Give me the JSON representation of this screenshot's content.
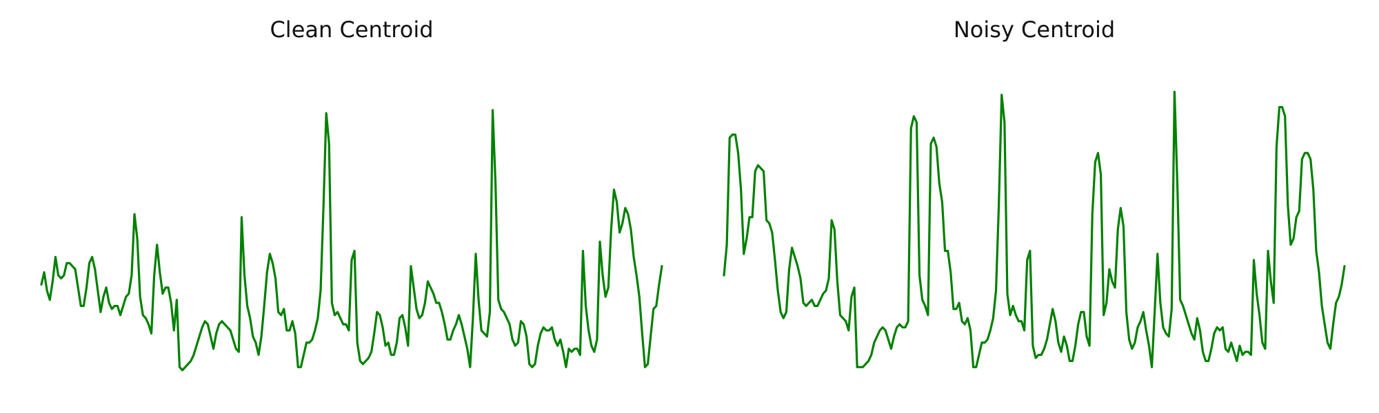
{
  "chart_data": [
    {
      "type": "line",
      "title": "Clean Centroid",
      "color": "#008000",
      "grid": false,
      "axes_visible": false,
      "ylim": [
        -0.06,
        1.02
      ],
      "values": [
        0.27,
        0.31,
        0.25,
        0.22,
        0.28,
        0.36,
        0.3,
        0.29,
        0.3,
        0.34,
        0.34,
        0.33,
        0.32,
        0.26,
        0.2,
        0.2,
        0.26,
        0.34,
        0.36,
        0.32,
        0.25,
        0.18,
        0.23,
        0.26,
        0.21,
        0.19,
        0.2,
        0.2,
        0.17,
        0.2,
        0.23,
        0.24,
        0.3,
        0.5,
        0.42,
        0.23,
        0.17,
        0.16,
        0.14,
        0.11,
        0.3,
        0.4,
        0.31,
        0.24,
        0.26,
        0.26,
        0.21,
        0.12,
        0.22,
        0.0,
        -0.01,
        0.0,
        0.01,
        0.02,
        0.04,
        0.07,
        0.1,
        0.13,
        0.15,
        0.14,
        0.1,
        0.06,
        0.11,
        0.14,
        0.15,
        0.14,
        0.13,
        0.12,
        0.09,
        0.06,
        0.05,
        0.49,
        0.3,
        0.2,
        0.16,
        0.1,
        0.08,
        0.04,
        0.1,
        0.2,
        0.31,
        0.37,
        0.34,
        0.29,
        0.18,
        0.17,
        0.19,
        0.12,
        0.12,
        0.15,
        0.11,
        0.0,
        0.0,
        0.04,
        0.08,
        0.08,
        0.09,
        0.12,
        0.16,
        0.25,
        0.52,
        0.83,
        0.73,
        0.21,
        0.17,
        0.18,
        0.16,
        0.14,
        0.14,
        0.12,
        0.35,
        0.38,
        0.08,
        0.02,
        0.01,
        0.02,
        0.03,
        0.05,
        0.11,
        0.18,
        0.17,
        0.13,
        0.07,
        0.08,
        0.04,
        0.04,
        0.08,
        0.16,
        0.17,
        0.13,
        0.07,
        0.33,
        0.26,
        0.19,
        0.16,
        0.17,
        0.21,
        0.28,
        0.26,
        0.24,
        0.21,
        0.21,
        0.18,
        0.14,
        0.09,
        0.09,
        0.12,
        0.14,
        0.17,
        0.14,
        0.1,
        0.06,
        0.0,
        0.16,
        0.37,
        0.22,
        0.12,
        0.11,
        0.1,
        0.18,
        0.84,
        0.6,
        0.22,
        0.19,
        0.18,
        0.16,
        0.14,
        0.09,
        0.07,
        0.08,
        0.15,
        0.14,
        0.1,
        0.01,
        0.0,
        0.01,
        0.07,
        0.11,
        0.13,
        0.12,
        0.12,
        0.13,
        0.09,
        0.07,
        0.09,
        0.05,
        0.0,
        0.06,
        0.05,
        0.06,
        0.06,
        0.04,
        0.38,
        0.2,
        0.12,
        0.07,
        0.05,
        0.09,
        0.41,
        0.3,
        0.23,
        0.26,
        0.45,
        0.58,
        0.54,
        0.44,
        0.47,
        0.52,
        0.5,
        0.45,
        0.36,
        0.3,
        0.23,
        0.11,
        0.0,
        0.01,
        0.1,
        0.19,
        0.2,
        0.27,
        0.33
      ]
    },
    {
      "type": "line",
      "title": "Noisy Centroid",
      "color": "#008000",
      "grid": false,
      "axes_visible": false,
      "ylim": [
        -0.06,
        1.02
      ],
      "values": [
        0.3,
        0.4,
        0.75,
        0.76,
        0.76,
        0.7,
        0.58,
        0.37,
        0.42,
        0.49,
        0.49,
        0.64,
        0.66,
        0.65,
        0.64,
        0.48,
        0.47,
        0.44,
        0.35,
        0.25,
        0.18,
        0.16,
        0.18,
        0.32,
        0.39,
        0.36,
        0.33,
        0.29,
        0.21,
        0.2,
        0.21,
        0.22,
        0.2,
        0.2,
        0.22,
        0.24,
        0.25,
        0.29,
        0.48,
        0.45,
        0.28,
        0.17,
        0.16,
        0.15,
        0.12,
        0.23,
        0.26,
        0.0,
        0.0,
        0.0,
        0.01,
        0.02,
        0.04,
        0.08,
        0.1,
        0.12,
        0.13,
        0.12,
        0.09,
        0.06,
        0.1,
        0.13,
        0.14,
        0.13,
        0.13,
        0.15,
        0.78,
        0.82,
        0.8,
        0.3,
        0.22,
        0.2,
        0.17,
        0.73,
        0.75,
        0.72,
        0.6,
        0.54,
        0.38,
        0.38,
        0.31,
        0.19,
        0.19,
        0.21,
        0.15,
        0.14,
        0.16,
        0.12,
        0.0,
        0.0,
        0.04,
        0.08,
        0.08,
        0.09,
        0.12,
        0.16,
        0.25,
        0.53,
        0.89,
        0.8,
        0.24,
        0.17,
        0.2,
        0.17,
        0.15,
        0.15,
        0.12,
        0.35,
        0.38,
        0.07,
        0.03,
        0.04,
        0.04,
        0.06,
        0.09,
        0.14,
        0.19,
        0.15,
        0.08,
        0.05,
        0.1,
        0.07,
        0.02,
        0.02,
        0.07,
        0.14,
        0.18,
        0.18,
        0.1,
        0.07,
        0.5,
        0.67,
        0.7,
        0.63,
        0.17,
        0.21,
        0.32,
        0.28,
        0.26,
        0.45,
        0.52,
        0.46,
        0.18,
        0.09,
        0.06,
        0.08,
        0.13,
        0.15,
        0.18,
        0.12,
        0.07,
        0.0,
        0.18,
        0.37,
        0.21,
        0.13,
        0.11,
        0.1,
        0.19,
        0.9,
        0.6,
        0.22,
        0.2,
        0.17,
        0.14,
        0.11,
        0.09,
        0.16,
        0.12,
        0.05,
        0.02,
        0.02,
        0.06,
        0.11,
        0.13,
        0.12,
        0.13,
        0.06,
        0.05,
        0.08,
        0.05,
        0.02,
        0.07,
        0.04,
        0.05,
        0.05,
        0.04,
        0.35,
        0.24,
        0.17,
        0.08,
        0.06,
        0.38,
        0.28,
        0.21,
        0.72,
        0.85,
        0.85,
        0.82,
        0.53,
        0.4,
        0.42,
        0.49,
        0.51,
        0.68,
        0.7,
        0.7,
        0.68,
        0.58,
        0.38,
        0.31,
        0.2,
        0.14,
        0.08,
        0.06,
        0.14,
        0.21,
        0.23,
        0.27,
        0.33
      ]
    }
  ]
}
